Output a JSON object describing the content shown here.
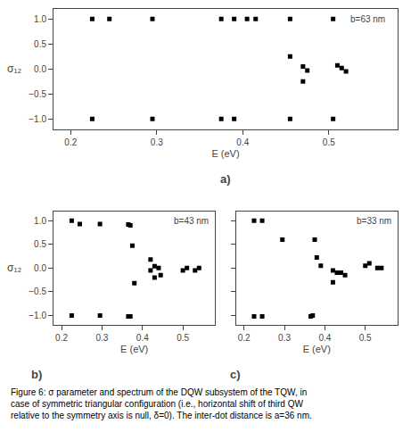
{
  "chart_data": [
    {
      "type": "scatter",
      "annotations": [
        "b=63 nm",
        "a)"
      ],
      "x": [
        0.225,
        0.245,
        0.295,
        0.375,
        0.39,
        0.405,
        0.415,
        0.455,
        0.505,
        0.225,
        0.295,
        0.375,
        0.39,
        0.455,
        0.505,
        0.455,
        0.47,
        0.475,
        0.51,
        0.515,
        0.52,
        0.47
      ],
      "values": [
        1.0,
        1.0,
        1.0,
        1.0,
        1.0,
        1.0,
        1.0,
        1.0,
        1.0,
        -1.0,
        -1.0,
        -1.0,
        -1.0,
        -1.0,
        -1.0,
        0.25,
        0.05,
        -0.03,
        0.07,
        0.02,
        -0.05,
        -0.25
      ],
      "xlabel": "E (eV)",
      "ylabel": "σ₁₂",
      "xlim": [
        0.18,
        0.58
      ],
      "ylim": [
        -1.2,
        1.2
      ],
      "xticks": [
        0.2,
        0.3,
        0.4,
        0.5
      ],
      "yticks": [
        {
          "value": -1.0,
          "label": "−1.0"
        },
        {
          "value": -0.5,
          "label": "−0.5"
        },
        {
          "value": 0.0,
          "label": "0.0"
        },
        {
          "value": 0.5,
          "label": "0.5"
        },
        {
          "value": 1.0,
          "label": "1.0"
        }
      ],
      "color": "black",
      "marker": "square",
      "grid": false
    },
    {
      "type": "scatter",
      "annotations": [
        "b=43 nm",
        "b)"
      ],
      "x": [
        0.225,
        0.245,
        0.295,
        0.365,
        0.37,
        0.225,
        0.295,
        0.365,
        0.37,
        0.375,
        0.38,
        0.42,
        0.43,
        0.44,
        0.445,
        0.5,
        0.51,
        0.53,
        0.54,
        0.42,
        0.43
      ],
      "values": [
        1.0,
        0.93,
        0.93,
        0.92,
        0.9,
        -1.0,
        -1.0,
        -1.02,
        -1.02,
        0.47,
        -0.32,
        0.18,
        0.04,
        0.0,
        -0.15,
        -0.05,
        0.0,
        -0.05,
        0.0,
        -0.05,
        -0.2
      ],
      "xlabel": "E (eV)",
      "ylabel": "σ₁₂",
      "xlim": [
        0.18,
        0.58
      ],
      "ylim": [
        -1.2,
        1.2
      ],
      "xticks": [
        0.2,
        0.3,
        0.4,
        0.5
      ],
      "yticks": [
        {
          "value": -1.0,
          "label": "−1.0"
        },
        {
          "value": -0.5,
          "label": "−0.5"
        },
        {
          "value": 0.0,
          "label": "0.0"
        },
        {
          "value": 0.5,
          "label": "0.5"
        },
        {
          "value": 1.0,
          "label": "1.0"
        }
      ],
      "color": "black",
      "marker": "square",
      "grid": false
    },
    {
      "type": "scatter",
      "annotations": [
        "b=33 nm",
        "c)"
      ],
      "x": [
        0.225,
        0.245,
        0.225,
        0.245,
        0.365,
        0.37,
        0.295,
        0.375,
        0.38,
        0.39,
        0.42,
        0.43,
        0.44,
        0.45,
        0.5,
        0.51,
        0.53,
        0.54,
        0.42
      ],
      "values": [
        1.0,
        1.0,
        -1.02,
        -1.02,
        -1.02,
        -1.0,
        0.6,
        0.6,
        0.22,
        0.05,
        -0.05,
        -0.1,
        -0.1,
        -0.15,
        0.05,
        0.1,
        0.0,
        0.0,
        -0.3
      ],
      "xlabel": "E (eV)",
      "xlim": [
        0.18,
        0.58
      ],
      "ylim": [
        -1.2,
        1.2
      ],
      "xticks": [
        0.2,
        0.3,
        0.4,
        0.5
      ],
      "yticks": [
        -1.0,
        -0.5,
        0.0,
        0.5,
        1.0
      ],
      "tick_labels": "x",
      "color": "black",
      "marker": "square",
      "grid": false
    }
  ],
  "caption": "Figure 6: σ parameter and spectrum of the DQW subsystem of the TQW, in\ncase of symmetric triangular configuration (i.e., horizontal shift of third QW\nrelative to the symmetry axis is null, δ=0). The inter-dot distance is a=36 nm."
}
